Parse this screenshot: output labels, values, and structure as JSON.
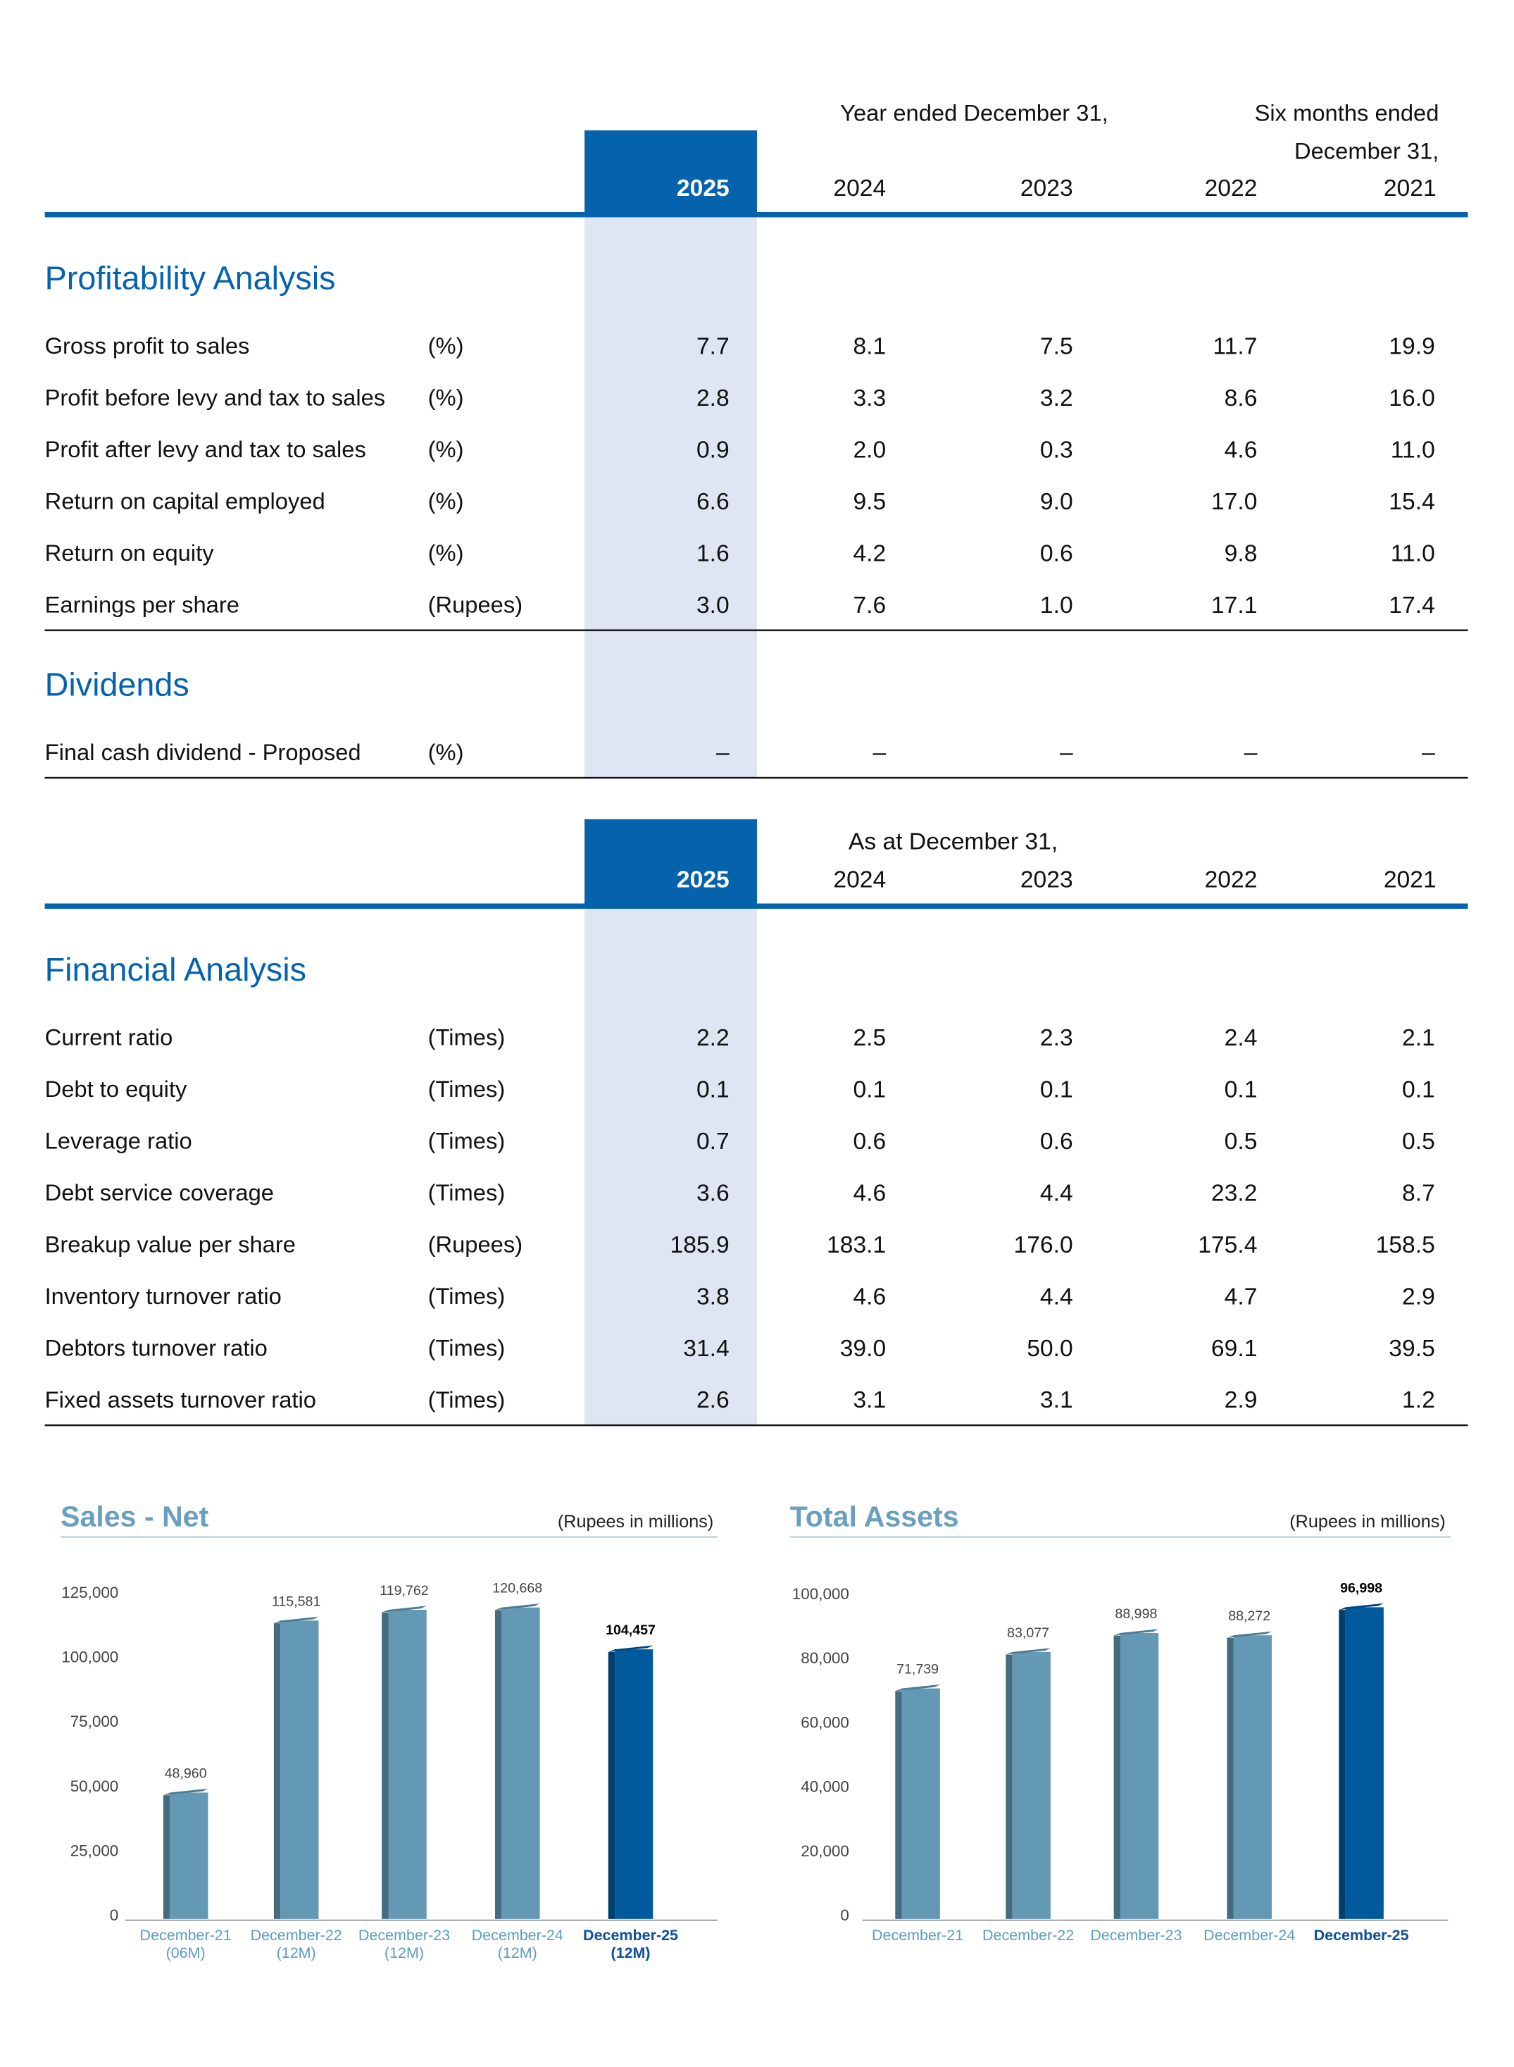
{
  "top_table": {
    "header_note": "Year ended December 31,",
    "header_note2": [
      "Six months ended",
      "December 31,"
    ],
    "years": [
      "2025",
      "2024",
      "2023",
      "2022",
      "2021"
    ],
    "sections": [
      {
        "title": "Profitability Analysis",
        "rows": [
          {
            "label": "Gross profit to sales",
            "unit": "(%)",
            "values": [
              "7.7",
              "8.1",
              "7.5",
              "11.7",
              "19.9"
            ]
          },
          {
            "label": "Profit before levy and tax to sales",
            "unit": "(%)",
            "values": [
              "2.8",
              "3.3",
              "3.2",
              "8.6",
              "16.0"
            ]
          },
          {
            "label": "Profit after levy and tax to sales",
            "unit": "(%)",
            "values": [
              "0.9",
              "2.0",
              "0.3",
              "4.6",
              "11.0"
            ]
          },
          {
            "label": "Return on capital employed",
            "unit": "(%)",
            "values": [
              "6.6",
              "9.5",
              "9.0",
              "17.0",
              "15.4"
            ]
          },
          {
            "label": "Return on equity",
            "unit": "(%)",
            "values": [
              "1.6",
              "4.2",
              "0.6",
              "9.8",
              "11.0"
            ]
          },
          {
            "label": "Earnings per share",
            "unit": "(Rupees)",
            "values": [
              "3.0",
              "7.6",
              "1.0",
              "17.1",
              "17.4"
            ]
          }
        ]
      },
      {
        "title": "Dividends",
        "rows": [
          {
            "label": "Final cash dividend - Proposed",
            "unit": "(%)",
            "values": [
              "–",
              "–",
              "–",
              "–",
              "–"
            ]
          }
        ]
      }
    ]
  },
  "bottom_table": {
    "header_note": "As at December 31,",
    "years": [
      "2025",
      "2024",
      "2023",
      "2022",
      "2021"
    ],
    "sections": [
      {
        "title": "Financial Analysis",
        "rows": [
          {
            "label": "Current ratio",
            "unit": "(Times)",
            "values": [
              "2.2",
              "2.5",
              "2.3",
              "2.4",
              "2.1"
            ]
          },
          {
            "label": "Debt to equity",
            "unit": "(Times)",
            "values": [
              "0.1",
              "0.1",
              "0.1",
              "0.1",
              "0.1"
            ]
          },
          {
            "label": "Leverage ratio",
            "unit": "(Times)",
            "values": [
              "0.7",
              "0.6",
              "0.6",
              "0.5",
              "0.5"
            ]
          },
          {
            "label": "Debt service coverage",
            "unit": "(Times)",
            "values": [
              "3.6",
              "4.6",
              "4.4",
              "23.2",
              "8.7"
            ]
          },
          {
            "label": "Breakup value per share",
            "unit": "(Rupees)",
            "values": [
              "185.9",
              "183.1",
              "176.0",
              "175.4",
              "158.5"
            ]
          },
          {
            "label": "Inventory turnover ratio",
            "unit": "(Times)",
            "values": [
              "3.8",
              "4.6",
              "4.4",
              "4.7",
              "2.9"
            ]
          },
          {
            "label": "Debtors turnover ratio",
            "unit": "(Times)",
            "values": [
              "31.4",
              "39.0",
              "50.0",
              "69.1",
              "39.5"
            ]
          },
          {
            "label": "Fixed assets turnover ratio",
            "unit": "(Times)",
            "values": [
              "2.6",
              "3.1",
              "3.1",
              "2.9",
              "1.2"
            ]
          }
        ]
      }
    ]
  },
  "chart_data": [
    {
      "type": "bar",
      "title": "Sales - Net",
      "subtitle": "(Rupees in millions)",
      "categories": [
        "December-21",
        "December-22",
        "December-23",
        "December-24",
        "December-25"
      ],
      "category_periods": [
        "(06M)",
        "(12M)",
        "(12M)",
        "(12M)",
        "(12M)"
      ],
      "values": [
        48960,
        115581,
        119762,
        120668,
        104457
      ],
      "value_labels": [
        "48,960",
        "115,581",
        "119,762",
        "120,668",
        "104,457"
      ],
      "colors": [
        "#6399b5",
        "#6399b5",
        "#6399b5",
        "#6399b5",
        "#005a9c"
      ],
      "ylim": [
        0,
        125000
      ],
      "yticks": [
        0,
        {
          "value": 25000,
          "label": "25,000"
        },
        {
          "value": 50000,
          "label": "50,000"
        },
        {
          "value": 75000,
          "label": "75,000"
        },
        {
          "value": 100000,
          "label": "100,000"
        },
        {
          "value": 125000,
          "label": "125,000"
        }
      ]
    },
    {
      "type": "bar",
      "title": "Total Assets",
      "subtitle": "(Rupees in millions)",
      "categories": [
        "December-21",
        "December-22",
        "December-23",
        "December-24",
        "December-25"
      ],
      "values": [
        71739,
        83077,
        88998,
        88272,
        96998
      ],
      "value_labels": [
        "71,739",
        "83,077",
        "88,998",
        "88,272",
        "96,998"
      ],
      "colors": [
        "#6399b5",
        "#6399b5",
        "#6399b5",
        "#6399b5",
        "#005a9c"
      ],
      "ylim": [
        0,
        100000
      ],
      "yticks": [
        0,
        {
          "value": 20000,
          "label": "20,000"
        },
        {
          "value": 40000,
          "label": "40,000"
        },
        {
          "value": 60000,
          "label": "60,000"
        },
        {
          "value": 80000,
          "label": "80,000"
        },
        {
          "value": 100000,
          "label": "100,000"
        }
      ]
    }
  ]
}
